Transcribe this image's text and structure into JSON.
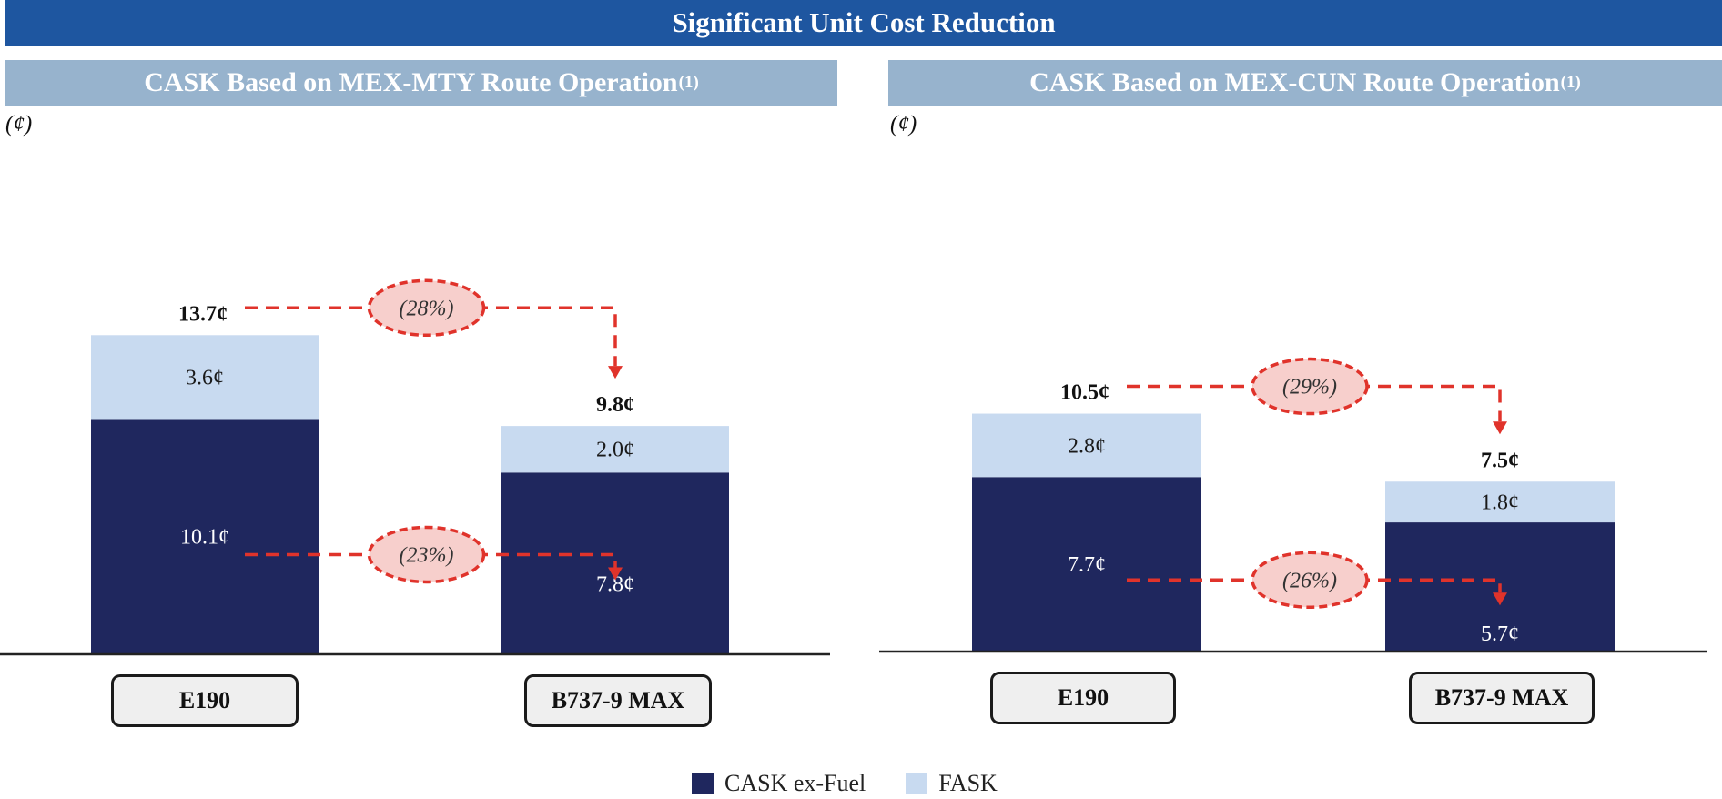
{
  "title": "Significant Unit Cost Reduction",
  "legend": [
    {
      "label": "CASK ex-Fuel",
      "color": "#1f275e"
    },
    {
      "label": "FASK",
      "color": "#c8daf0"
    }
  ],
  "chart_data": [
    {
      "type": "bar",
      "title": "CASK Based on MEX-MTY Route Operation",
      "title_footnote": "(1)",
      "unit_label": "(¢)",
      "categories": [
        "E190",
        "B737-9 MAX"
      ],
      "stacked": true,
      "series": [
        {
          "name": "CASK ex-Fuel",
          "values": [
            10.1,
            7.8
          ],
          "labels": [
            "10.1¢",
            "7.8¢"
          ],
          "color": "#1f275e"
        },
        {
          "name": "FASK",
          "values": [
            3.6,
            2.0
          ],
          "labels": [
            "3.6¢",
            "2.0¢"
          ],
          "color": "#c8daf0"
        }
      ],
      "totals": [
        13.7,
        9.8
      ],
      "total_labels": [
        "13.7¢",
        "9.8¢"
      ],
      "changes": {
        "total": "(28%)",
        "ex_fuel": "(23%)"
      }
    },
    {
      "type": "bar",
      "title": "CASK Based on MEX-CUN Route Operation",
      "title_footnote": "(1)",
      "unit_label": "(¢)",
      "categories": [
        "E190",
        "B737-9 MAX"
      ],
      "stacked": true,
      "series": [
        {
          "name": "CASK ex-Fuel",
          "values": [
            7.7,
            5.7
          ],
          "labels": [
            "7.7¢",
            "5.7¢"
          ],
          "color": "#1f275e"
        },
        {
          "name": "FASK",
          "values": [
            2.8,
            1.8
          ],
          "labels": [
            "2.8¢",
            "1.8¢"
          ],
          "color": "#c8daf0"
        }
      ],
      "totals": [
        10.5,
        7.5
      ],
      "total_labels": [
        "10.5¢",
        "7.5¢"
      ],
      "changes": {
        "total": "(29%)",
        "ex_fuel": "(26%)"
      }
    }
  ]
}
